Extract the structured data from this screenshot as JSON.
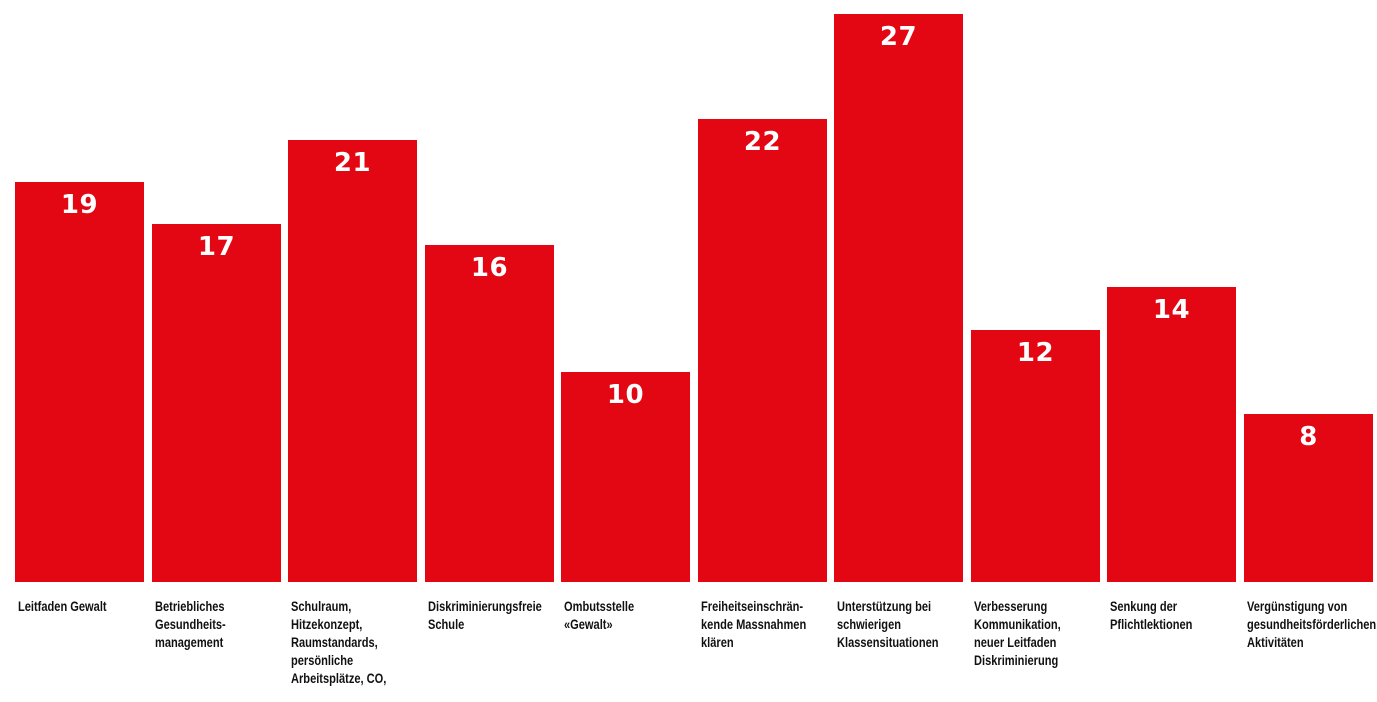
{
  "colors": {
    "bar": "#e30613",
    "value_text": "#ffffff",
    "label_text": "#111111",
    "background": "#ffffff"
  },
  "chart_data": {
    "type": "bar",
    "title": "",
    "xlabel": "",
    "ylabel": "",
    "ylim": [
      0,
      27
    ],
    "grid": false,
    "categories": [
      "Leitfaden Gewalt",
      "Betriebliches\nGesundheits-\nmanagement",
      "Schulraum,\nHitzekonzept,\nRaumstandards,\npersönliche\nArbeitsplätze, CO,",
      "Diskriminierungsfreie\nSchule",
      "Ombutsstelle\n«Gewalt»",
      "Freiheitseinschrän-\nkende Massnahmen\nklären",
      "Unterstützung bei\nschwierigen\nKlassensituationen",
      "Verbesserung\nKommunikation,\nneuer Leitfaden\nDiskriminierung",
      "Senkung der\nPflichtlektionen",
      "Vergünstigung von\ngesundheitsförderlichen\nAktivitäten"
    ],
    "values": [
      19,
      17,
      21,
      16,
      10,
      22,
      27,
      12,
      14,
      8
    ],
    "data_labels": [
      "19",
      "17",
      "21",
      "16",
      "10",
      "22",
      "27",
      "12",
      "14",
      "8"
    ]
  }
}
